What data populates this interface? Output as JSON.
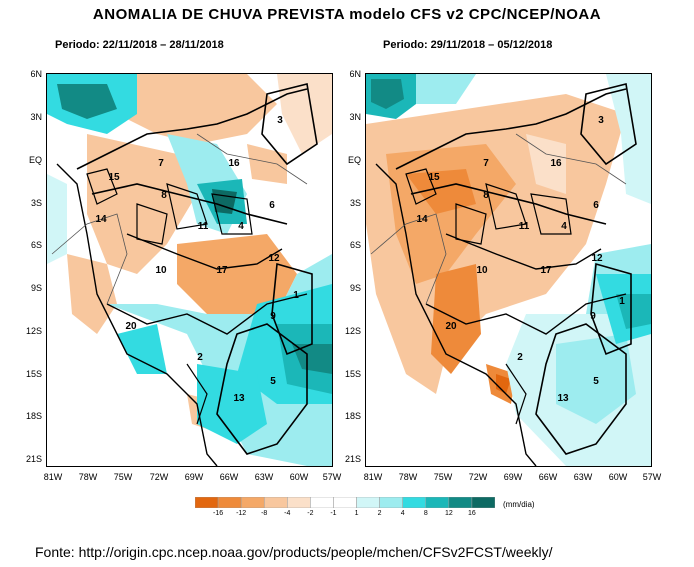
{
  "title": "ANOMALIA DE CHUVA PREVISTA modelo CFS v2 CPC/NCEP/NOAA",
  "maps": [
    {
      "period_label": "Periodo: 22/11/2018 – 28/11/2018"
    },
    {
      "period_label": "Periodo: 29/11/2018 – 05/12/2018"
    }
  ],
  "latitudes": [
    "6N",
    "3N",
    "EQ",
    "3S",
    "6S",
    "9S",
    "12S",
    "15S",
    "18S",
    "21S"
  ],
  "longitudes": [
    "81W",
    "78W",
    "75W",
    "72W",
    "69W",
    "66W",
    "63W",
    "60W",
    "57W"
  ],
  "basins": [
    "1",
    "2",
    "3",
    "4",
    "5",
    "6",
    "7",
    "8",
    "9",
    "10",
    "11",
    "12",
    "13",
    "14",
    "15",
    "16",
    "17",
    "20"
  ],
  "legend": {
    "labels": [
      "-16",
      "-12",
      "-8",
      "-4",
      "-2",
      "-1",
      "1",
      "2",
      "4",
      "8",
      "12",
      "16"
    ],
    "colors": [
      "#e2670f",
      "#ee8a3a",
      "#f4a867",
      "#f8c79e",
      "#fbe0c9",
      "#ffffff",
      "#ffffff",
      "#d1f6f7",
      "#9decef",
      "#33dbe1",
      "#1bb7b8",
      "#128a85",
      "#0d6a63"
    ],
    "unit": "(mm/dia)"
  },
  "source": "Fonte: http://origin.cpc.ncep.noaa.gov/products/people/mchen/CFSv2FCST/weekly/"
}
